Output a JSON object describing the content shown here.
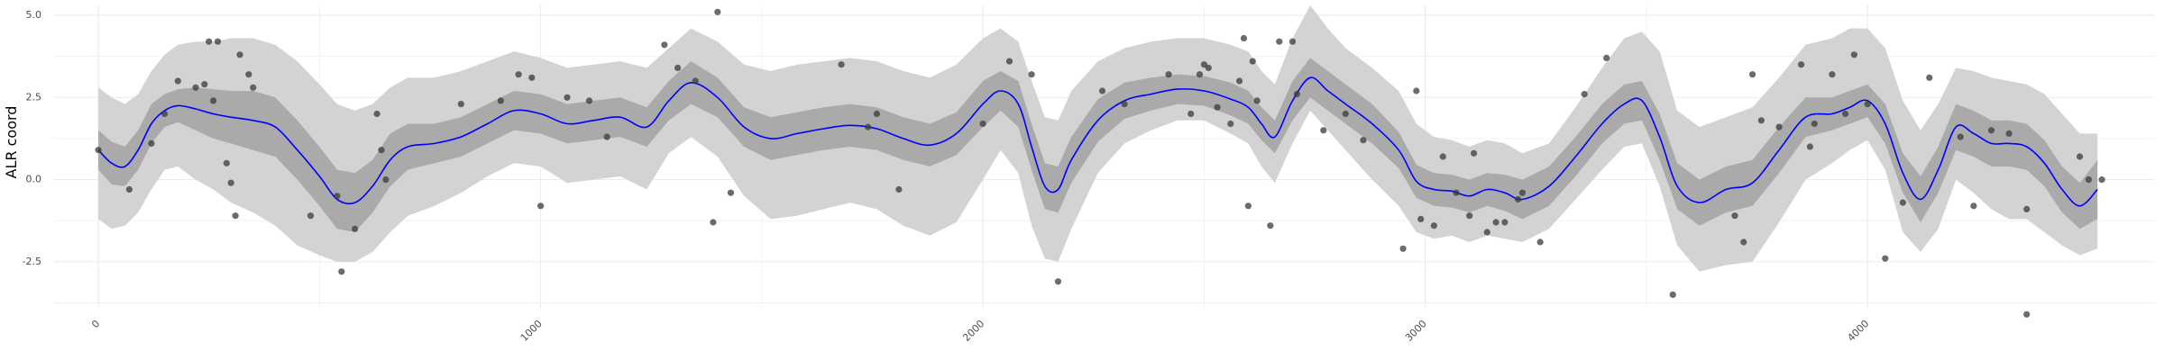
{
  "chart_data": {
    "type": "line",
    "title": "",
    "xlabel": "",
    "ylabel": "ALR coord",
    "xlim": [
      -100,
      4650
    ],
    "ylim": [
      -3.9,
      5.3
    ],
    "x_ticks": [
      0,
      1000,
      2000,
      3000,
      4000
    ],
    "x_tick_labels": [
      "0",
      "1000",
      "2000",
      "3000",
      "4000"
    ],
    "y_ticks": [
      -2.5,
      0,
      2.5,
      5
    ],
    "y_tick_labels": [
      "-2.5",
      "0.0",
      "2.5",
      "5.0"
    ],
    "grid": true,
    "legend": "none",
    "colors": {
      "fit_line": "#0000ff",
      "inner_band": "#aaaaaa",
      "outer_band": "#d3d3d3",
      "points": "#3a3a3a",
      "grid": "#ebebeb"
    },
    "series": [
      {
        "kind": "smooth-fit",
        "x": [
          0,
          30,
          60,
          90,
          120,
          150,
          180,
          220,
          260,
          300,
          350,
          400,
          450,
          500,
          540,
          580,
          620,
          660,
          700,
          760,
          820,
          880,
          940,
          1000,
          1060,
          1120,
          1180,
          1240,
          1290,
          1340,
          1400,
          1460,
          1520,
          1580,
          1640,
          1700,
          1760,
          1820,
          1880,
          1940,
          2000,
          2040,
          2080,
          2110,
          2140,
          2170,
          2200,
          2260,
          2320,
          2380,
          2440,
          2500,
          2560,
          2600,
          2630,
          2660,
          2700,
          2740,
          2780,
          2820,
          2880,
          2940,
          2980,
          3020,
          3060,
          3100,
          3140,
          3180,
          3220,
          3280,
          3340,
          3400,
          3450,
          3490,
          3530,
          3570,
          3620,
          3680,
          3740,
          3800,
          3860,
          3920,
          3960,
          4000,
          4040,
          4080,
          4120,
          4160,
          4200,
          4240,
          4280,
          4320,
          4360,
          4400,
          4440,
          4480,
          4520
        ],
        "fit": [
          0.9,
          0.5,
          0.4,
          0.9,
          1.7,
          2.1,
          2.25,
          2.15,
          2.0,
          1.9,
          1.8,
          1.6,
          0.9,
          0.1,
          -0.6,
          -0.7,
          -0.2,
          0.6,
          1.0,
          1.1,
          1.3,
          1.7,
          2.1,
          2.0,
          1.7,
          1.8,
          1.9,
          1.6,
          2.4,
          2.95,
          2.5,
          1.6,
          1.25,
          1.4,
          1.55,
          1.65,
          1.55,
          1.25,
          1.05,
          1.4,
          2.3,
          2.7,
          2.3,
          1.0,
          -0.2,
          -0.3,
          0.6,
          1.8,
          2.4,
          2.6,
          2.75,
          2.7,
          2.45,
          2.2,
          1.7,
          1.3,
          2.4,
          3.1,
          2.7,
          2.3,
          1.7,
          0.9,
          -0.05,
          -0.3,
          -0.35,
          -0.5,
          -0.3,
          -0.4,
          -0.6,
          -0.2,
          0.7,
          1.7,
          2.3,
          2.4,
          1.3,
          -0.2,
          -0.7,
          -0.3,
          -0.1,
          0.9,
          1.9,
          2.0,
          2.2,
          2.4,
          1.7,
          0.2,
          -0.6,
          0.3,
          1.6,
          1.4,
          1.1,
          1.1,
          1.0,
          0.5,
          -0.3,
          -0.8,
          -0.3
        ],
        "inner_lower": [
          0.3,
          -0.15,
          -0.2,
          0.3,
          1.1,
          1.6,
          1.75,
          1.5,
          1.25,
          1.1,
          0.9,
          0.7,
          0.0,
          -0.8,
          -1.5,
          -1.6,
          -1.0,
          -0.2,
          0.3,
          0.5,
          0.7,
          1.1,
          1.5,
          1.4,
          1.1,
          1.2,
          1.3,
          1.0,
          1.8,
          2.3,
          1.9,
          1.0,
          0.6,
          0.75,
          0.9,
          1.0,
          0.9,
          0.6,
          0.4,
          0.75,
          1.6,
          2.1,
          1.6,
          0.3,
          -0.9,
          -1.0,
          -0.1,
          1.15,
          1.85,
          2.1,
          2.3,
          2.25,
          1.95,
          1.7,
          1.2,
          0.8,
          1.8,
          2.5,
          2.1,
          1.7,
          1.1,
          0.35,
          -0.55,
          -0.8,
          -0.85,
          -1.0,
          -0.8,
          -0.95,
          -1.2,
          -0.8,
          0.1,
          1.1,
          1.7,
          1.8,
          0.6,
          -0.9,
          -1.4,
          -1.0,
          -0.8,
          0.2,
          1.3,
          1.5,
          1.7,
          1.9,
          1.1,
          -0.4,
          -1.3,
          -0.4,
          0.9,
          0.7,
          0.4,
          0.4,
          0.3,
          -0.2,
          -1.0,
          -1.5,
          -1.2
        ],
        "inner_upper": [
          1.5,
          1.15,
          1.0,
          1.5,
          2.3,
          2.6,
          2.75,
          2.8,
          2.75,
          2.7,
          2.7,
          2.5,
          1.8,
          1.0,
          0.3,
          0.2,
          0.6,
          1.4,
          1.7,
          1.7,
          1.9,
          2.3,
          2.7,
          2.6,
          2.3,
          2.4,
          2.5,
          2.2,
          3.0,
          3.6,
          3.1,
          2.2,
          1.9,
          2.05,
          2.2,
          2.3,
          2.2,
          1.9,
          1.7,
          2.05,
          3.0,
          3.3,
          3.0,
          1.7,
          0.5,
          0.4,
          1.3,
          2.45,
          2.95,
          3.1,
          3.2,
          3.15,
          2.95,
          2.7,
          2.2,
          1.8,
          3.0,
          3.7,
          3.3,
          2.9,
          2.3,
          1.45,
          0.45,
          0.2,
          0.15,
          0.0,
          0.2,
          0.15,
          0.0,
          0.4,
          1.3,
          2.3,
          2.9,
          3.0,
          2.0,
          0.5,
          0.0,
          0.4,
          0.6,
          1.6,
          2.5,
          2.5,
          2.7,
          2.9,
          2.3,
          0.8,
          0.1,
          1.0,
          2.3,
          2.1,
          1.8,
          1.8,
          1.7,
          1.2,
          0.4,
          -0.1,
          0.6
        ],
        "outer_lower": [
          -1.2,
          -1.5,
          -1.4,
          -1.0,
          -0.3,
          0.3,
          0.4,
          0.0,
          -0.3,
          -0.7,
          -1.0,
          -1.4,
          -2.0,
          -2.3,
          -2.5,
          -2.5,
          -2.2,
          -1.6,
          -1.1,
          -0.8,
          -0.4,
          0.1,
          0.5,
          0.4,
          -0.1,
          0.0,
          0.1,
          -0.3,
          0.8,
          1.3,
          0.7,
          -0.5,
          -1.2,
          -1.1,
          -0.9,
          -0.7,
          -0.9,
          -1.4,
          -1.7,
          -1.3,
          0.0,
          0.9,
          0.2,
          -1.4,
          -2.4,
          -2.5,
          -1.5,
          0.2,
          1.1,
          1.5,
          1.8,
          1.8,
          1.4,
          1.1,
          0.4,
          -0.1,
          1.1,
          2.1,
          1.5,
          0.9,
          0.0,
          -0.8,
          -1.6,
          -1.8,
          -1.7,
          -1.9,
          -1.7,
          -1.8,
          -1.9,
          -1.5,
          -0.6,
          0.3,
          1.0,
          1.1,
          -0.2,
          -2.0,
          -2.8,
          -2.6,
          -2.5,
          -1.3,
          0.0,
          0.5,
          0.9,
          1.2,
          0.3,
          -1.6,
          -2.2,
          -1.5,
          0.0,
          -0.4,
          -0.9,
          -1.2,
          -1.2,
          -1.6,
          -2.0,
          -2.3,
          -2.1
        ],
        "outer_upper": [
          2.8,
          2.5,
          2.3,
          2.6,
          3.3,
          3.8,
          4.1,
          4.2,
          4.2,
          4.3,
          4.3,
          4.1,
          3.6,
          2.9,
          2.3,
          2.1,
          2.3,
          2.8,
          3.1,
          3.1,
          3.3,
          3.6,
          3.9,
          3.7,
          3.4,
          3.5,
          3.6,
          3.4,
          4.0,
          4.6,
          4.2,
          3.5,
          3.3,
          3.5,
          3.6,
          3.7,
          3.6,
          3.3,
          3.1,
          3.5,
          4.3,
          4.6,
          4.2,
          3.0,
          1.9,
          1.8,
          2.7,
          3.6,
          4.0,
          4.2,
          4.3,
          4.3,
          4.1,
          3.9,
          3.3,
          2.9,
          4.3,
          5.3,
          4.6,
          4.0,
          3.4,
          2.7,
          1.7,
          1.3,
          1.2,
          1.0,
          1.2,
          1.1,
          0.8,
          1.1,
          2.2,
          3.4,
          4.3,
          4.5,
          3.9,
          2.1,
          1.6,
          1.9,
          2.2,
          3.1,
          4.1,
          4.3,
          4.6,
          4.6,
          4.0,
          2.4,
          1.5,
          2.3,
          3.4,
          3.3,
          3.1,
          3.0,
          2.9,
          2.6,
          2.0,
          1.4,
          1.4
        ]
      },
      {
        "kind": "observations",
        "x": [
          0,
          70,
          120,
          150,
          180,
          220,
          240,
          250,
          260,
          270,
          290,
          300,
          310,
          320,
          340,
          350,
          480,
          540,
          550,
          580,
          630,
          640,
          650,
          820,
          910,
          950,
          980,
          1000,
          1060,
          1110,
          1150,
          1280,
          1310,
          1350,
          1390,
          1400,
          1430,
          1680,
          1740,
          1760,
          1810,
          2000,
          2060,
          2110,
          2170,
          2270,
          2320,
          2420,
          2470,
          2490,
          2500,
          2510,
          2530,
          2560,
          2580,
          2590,
          2600,
          2610,
          2620,
          2650,
          2670,
          2700,
          2710,
          2770,
          2820,
          2860,
          2950,
          2980,
          2990,
          3020,
          3040,
          3070,
          3100,
          3110,
          3140,
          3160,
          3180,
          3210,
          3220,
          3260,
          3360,
          3410,
          3560,
          3700,
          3720,
          3740,
          3760,
          3800,
          3850,
          3870,
          3880,
          3920,
          3950,
          3970,
          4000,
          4040,
          4080,
          4140,
          4210,
          4240,
          4280,
          4320,
          4360,
          4360,
          4480,
          4500,
          4530
        ],
        "y": [
          0.9,
          -0.3,
          1.1,
          2.0,
          3.0,
          2.8,
          2.9,
          4.2,
          2.4,
          4.2,
          0.5,
          -0.1,
          -1.1,
          3.8,
          3.2,
          2.8,
          -1.1,
          -0.5,
          -2.8,
          -1.5,
          2.0,
          0.9,
          0.0,
          2.3,
          2.4,
          3.2,
          3.1,
          -0.8,
          2.5,
          2.4,
          1.3,
          4.1,
          3.4,
          3.0,
          -1.3,
          5.1,
          -0.4,
          3.5,
          1.6,
          2.0,
          -0.3,
          1.7,
          3.6,
          3.2,
          -3.1,
          2.7,
          2.3,
          3.2,
          2.0,
          3.2,
          3.5,
          3.4,
          2.2,
          1.7,
          3.0,
          4.3,
          -0.8,
          3.6,
          2.4,
          -1.4,
          4.2,
          4.2,
          2.6,
          1.5,
          2.0,
          1.2,
          -2.1,
          2.7,
          -1.2,
          -1.4,
          0.7,
          -0.4,
          -1.1,
          0.8,
          -1.6,
          -1.3,
          -1.3,
          -0.6,
          -0.4,
          -1.9,
          2.6,
          3.7,
          -3.5,
          -1.1,
          -1.9,
          3.2,
          1.8,
          1.6,
          3.5,
          1.0,
          1.7,
          3.2,
          2.0,
          3.8,
          2.3,
          -2.4,
          -0.7,
          3.1,
          1.3,
          -0.8,
          1.5,
          1.4,
          -4.1,
          -0.9,
          0.7,
          0.0,
          0.0
        ]
      }
    ]
  }
}
